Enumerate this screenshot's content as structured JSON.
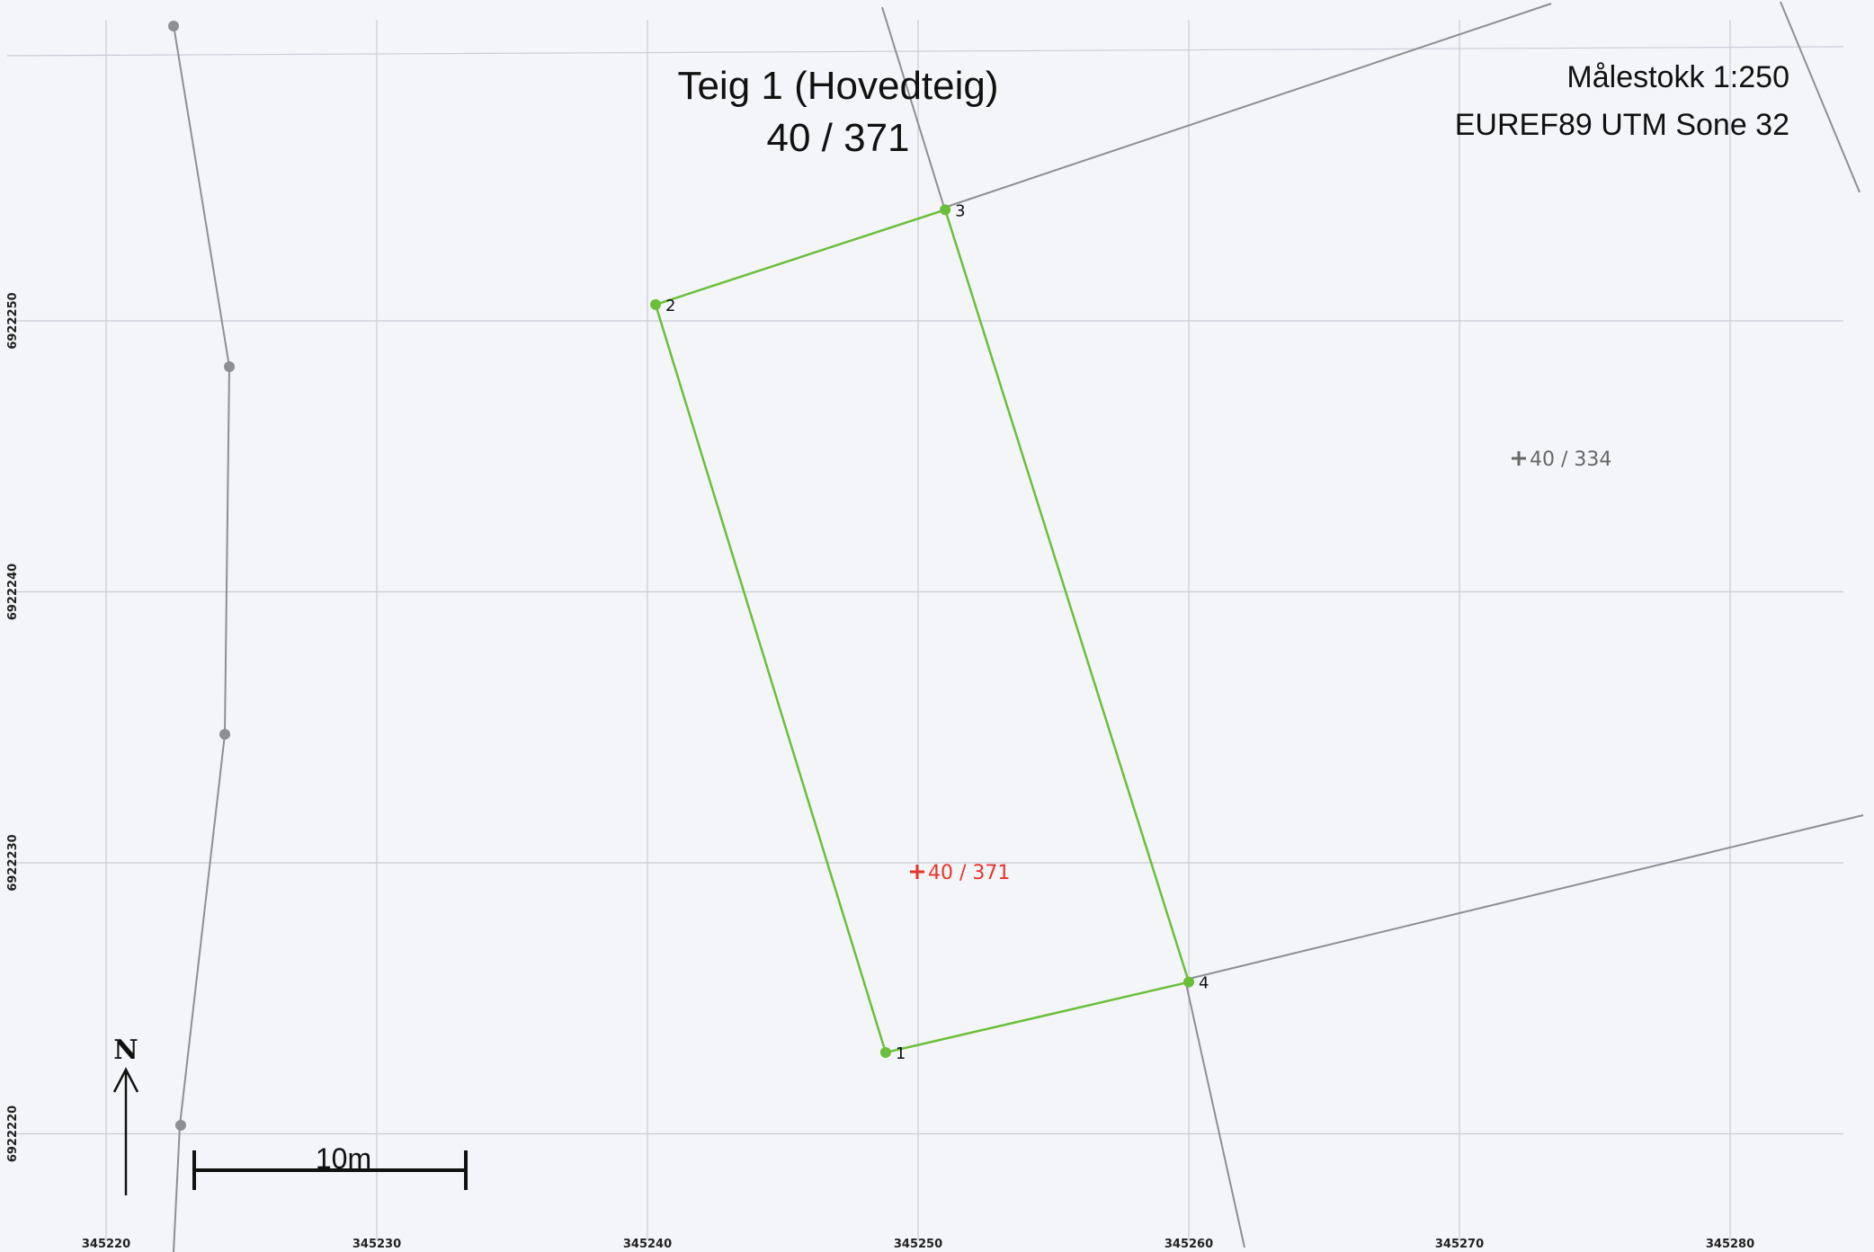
{
  "title": {
    "line1": "Teig 1 (Hovedteig)",
    "line2": "40 / 371"
  },
  "info": {
    "scale": "Målestokk 1:250",
    "crs": "EUREF89 UTM Sone 32"
  },
  "grid": {
    "x_labels": [
      "345220",
      "345230",
      "345240",
      "345250",
      "345260",
      "345270",
      "345280"
    ],
    "y_labels": [
      "6922250",
      "6922240",
      "6922230",
      "6922220"
    ]
  },
  "parcel": {
    "color": "#6abf3a",
    "corners": [
      {
        "id": "1",
        "x": 345248.8,
        "y": 6922223.0
      },
      {
        "id": "2",
        "x": 345240.3,
        "y": 6922250.6
      },
      {
        "id": "3",
        "x": 345251.0,
        "y": 6922254.1
      },
      {
        "id": "4",
        "x": 345260.0,
        "y": 6922225.6
      }
    ]
  },
  "labels": {
    "current_parcel": "40 / 371",
    "current_parcel_color": "#e8332a",
    "neighbour_parcel": "40 / 334",
    "neighbour_parcel_color": "#666666"
  },
  "north_arrow": {
    "label": "N"
  },
  "scale_bar": {
    "label": "10m",
    "length_m": 10
  }
}
